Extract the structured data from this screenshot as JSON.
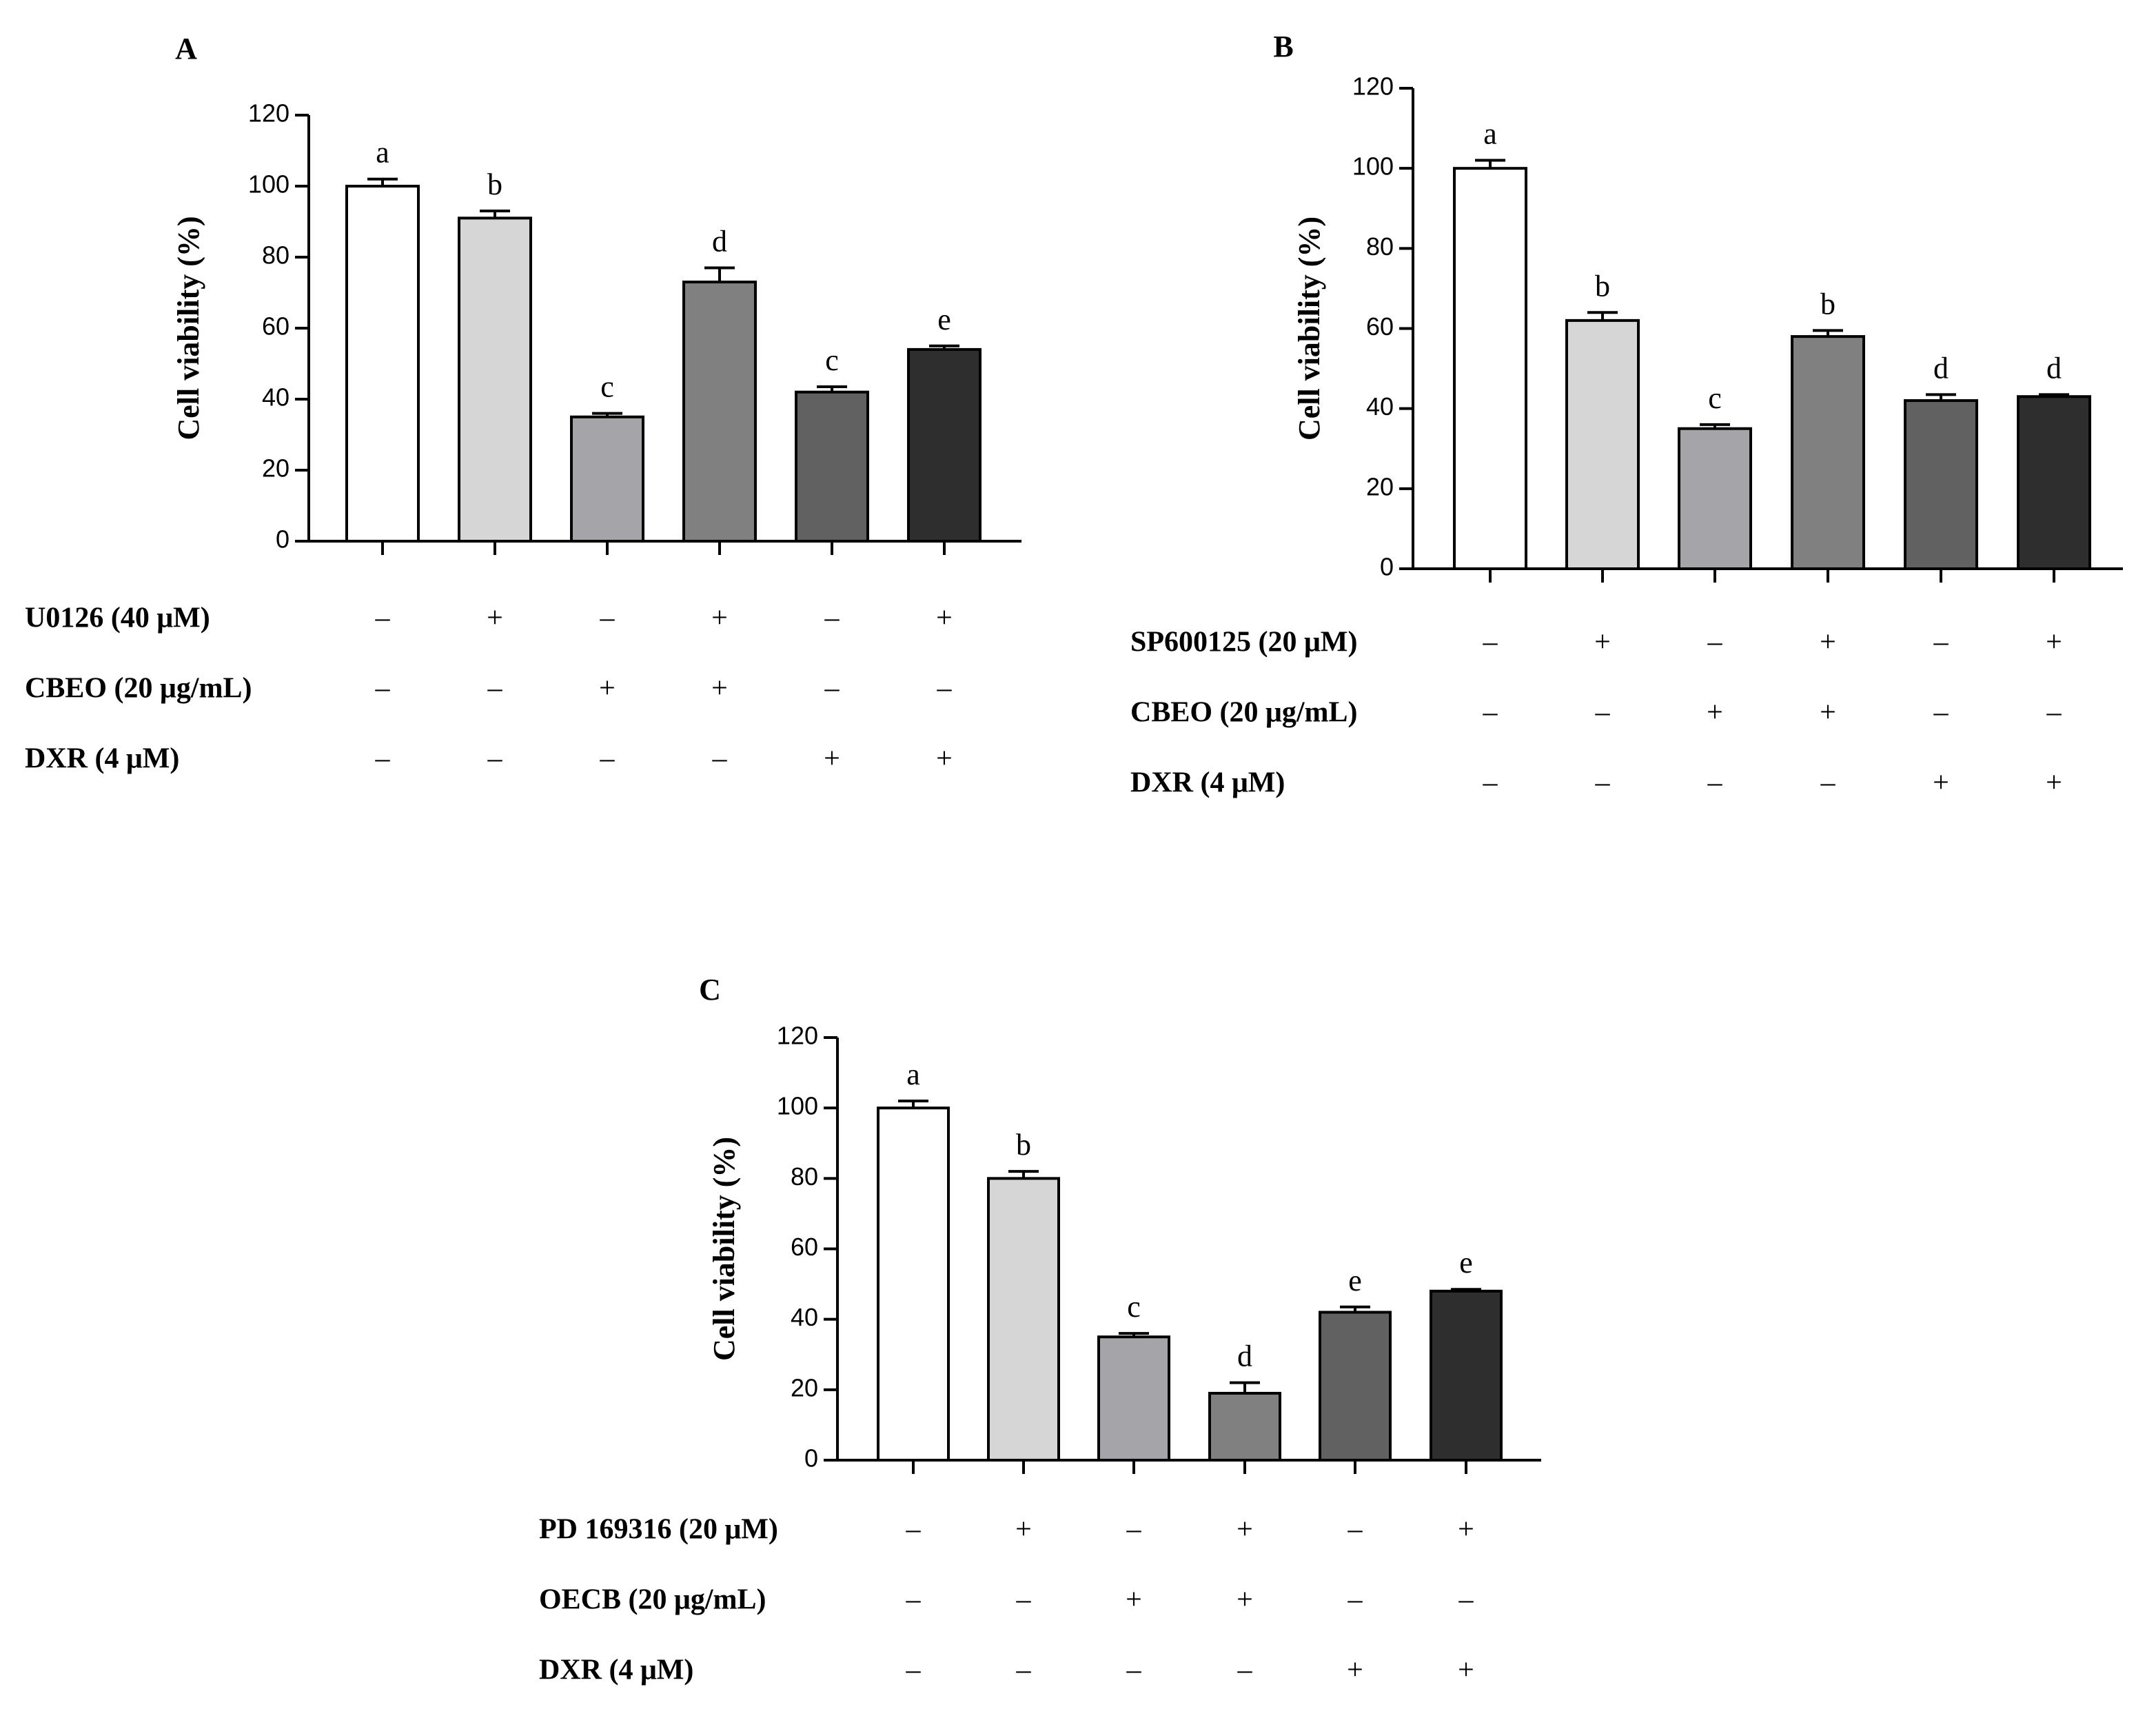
{
  "chart_data": [
    {
      "type": "bar",
      "panel": "A",
      "ylabel": "Cell viability (%)",
      "ylim": [
        0,
        120
      ],
      "yticks": [
        0,
        20,
        40,
        60,
        80,
        100,
        120
      ],
      "values": [
        100,
        91,
        35,
        73,
        42,
        54
      ],
      "errors": [
        2,
        2,
        1,
        4,
        1.5,
        1
      ],
      "sig_letters": [
        "a",
        "b",
        "c",
        "d",
        "c",
        "e"
      ],
      "bar_colors": [
        "#ffffff",
        "#d6d6d6",
        "#a5a5a9",
        "#808080",
        "#616161",
        "#2e2e2e"
      ],
      "conditions": [
        {
          "label": "U0126 (40 μM)",
          "signs": [
            "–",
            "+",
            "–",
            "+",
            "–",
            "+"
          ]
        },
        {
          "label": "CBEO (20 μg/mL)",
          "signs": [
            "–",
            "–",
            "+",
            "+",
            "–",
            "–"
          ]
        },
        {
          "label": "DXR (4 μM)",
          "signs": [
            "–",
            "–",
            "–",
            "–",
            "+",
            "+"
          ]
        }
      ]
    },
    {
      "type": "bar",
      "panel": "B",
      "ylabel": "Cell viability (%)",
      "ylim": [
        0,
        120
      ],
      "yticks": [
        0,
        20,
        40,
        60,
        80,
        100,
        120
      ],
      "values": [
        100,
        62,
        35,
        58,
        42,
        43
      ],
      "errors": [
        2,
        2,
        1,
        1.5,
        1.5,
        0.5
      ],
      "sig_letters": [
        "a",
        "b",
        "c",
        "b",
        "d",
        "d"
      ],
      "bar_colors": [
        "#ffffff",
        "#d6d6d6",
        "#a5a5a9",
        "#808080",
        "#616161",
        "#2e2e2e"
      ],
      "conditions": [
        {
          "label": "SP600125 (20 μM)",
          "signs": [
            "–",
            "+",
            "–",
            "+",
            "–",
            "+"
          ]
        },
        {
          "label": "CBEO (20 μg/mL)",
          "signs": [
            "–",
            "–",
            "+",
            "+",
            "–",
            "–"
          ]
        },
        {
          "label": "DXR (4 μM)",
          "signs": [
            "–",
            "–",
            "–",
            "–",
            "+",
            "+"
          ]
        }
      ]
    },
    {
      "type": "bar",
      "panel": "C",
      "ylabel": "Cell viability (%)",
      "ylim": [
        0,
        120
      ],
      "yticks": [
        0,
        20,
        40,
        60,
        80,
        100,
        120
      ],
      "values": [
        100,
        80,
        35,
        19,
        42,
        48
      ],
      "errors": [
        2,
        2,
        1,
        3,
        1.5,
        0.5
      ],
      "sig_letters": [
        "a",
        "b",
        "c",
        "d",
        "e",
        "e"
      ],
      "bar_colors": [
        "#ffffff",
        "#d6d6d6",
        "#a5a5a9",
        "#808080",
        "#616161",
        "#2e2e2e"
      ],
      "conditions": [
        {
          "label": "PD 169316 (20 μM)",
          "signs": [
            "–",
            "+",
            "–",
            "+",
            "–",
            "+"
          ]
        },
        {
          "label": "OECB (20 μg/mL)",
          "signs": [
            "–",
            "–",
            "+",
            "+",
            "–",
            "–"
          ]
        },
        {
          "label": "DXR (4 μM)",
          "signs": [
            "–",
            "–",
            "–",
            "–",
            "+",
            "+"
          ]
        }
      ]
    }
  ]
}
